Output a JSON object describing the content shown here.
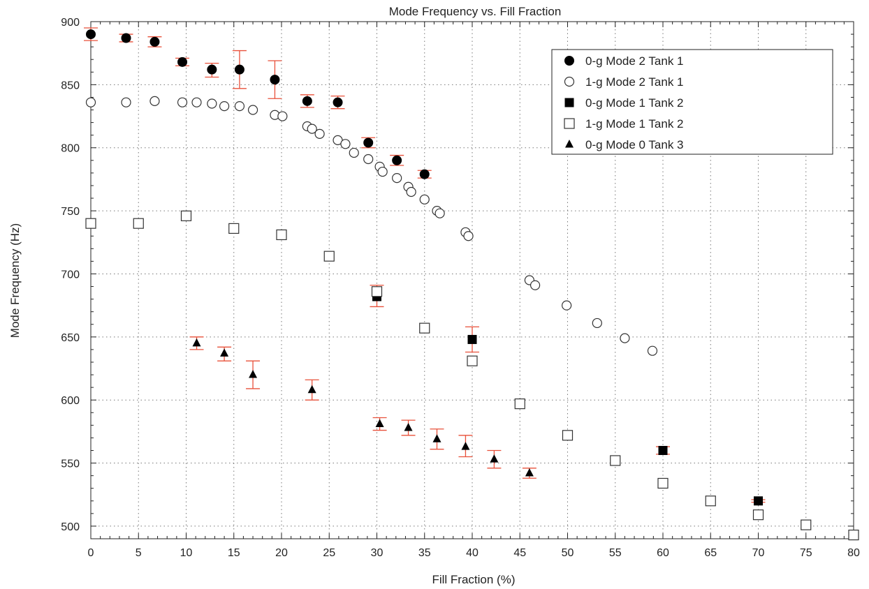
{
  "chart_data": {
    "type": "scatter",
    "title": "Mode Frequency vs. Fill Fraction",
    "xlabel": "Fill Fraction (%)",
    "ylabel": "Mode Frequency (Hz)",
    "xlim": [
      0,
      80
    ],
    "ylim": [
      490,
      900
    ],
    "x_ticks": [
      0,
      5,
      10,
      15,
      20,
      25,
      30,
      35,
      40,
      45,
      50,
      55,
      60,
      65,
      70,
      75,
      80
    ],
    "y_ticks": [
      500,
      550,
      600,
      650,
      700,
      750,
      800,
      850,
      900
    ],
    "grid": true,
    "legend_position": "top-right",
    "error_bar_color": "#e8503a",
    "series": [
      {
        "name": "0-g Mode 2 Tank 1",
        "marker": "filled-circle",
        "points": [
          {
            "x": 0,
            "y": 890,
            "lo": 885,
            "hi": 895
          },
          {
            "x": 3.7,
            "y": 887,
            "lo": 884,
            "hi": 890
          },
          {
            "x": 6.7,
            "y": 884,
            "lo": 880,
            "hi": 888
          },
          {
            "x": 9.6,
            "y": 868,
            "lo": 865,
            "hi": 871
          },
          {
            "x": 12.7,
            "y": 862,
            "lo": 856,
            "hi": 867
          },
          {
            "x": 15.6,
            "y": 862,
            "lo": 847,
            "hi": 877
          },
          {
            "x": 19.3,
            "y": 854,
            "lo": 839,
            "hi": 869
          },
          {
            "x": 22.7,
            "y": 837,
            "lo": 832,
            "hi": 842
          },
          {
            "x": 25.9,
            "y": 836,
            "lo": 831,
            "hi": 841
          },
          {
            "x": 29.1,
            "y": 804,
            "lo": 800,
            "hi": 808
          },
          {
            "x": 32.1,
            "y": 790,
            "lo": 786,
            "hi": 794
          },
          {
            "x": 35.0,
            "y": 779,
            "lo": 776,
            "hi": 782
          }
        ]
      },
      {
        "name": "1-g Mode 2 Tank 1",
        "marker": "open-circle",
        "points": [
          {
            "x": 0,
            "y": 836
          },
          {
            "x": 3.7,
            "y": 836
          },
          {
            "x": 6.7,
            "y": 837
          },
          {
            "x": 9.6,
            "y": 836
          },
          {
            "x": 11.1,
            "y": 836
          },
          {
            "x": 12.7,
            "y": 835
          },
          {
            "x": 14.0,
            "y": 833
          },
          {
            "x": 15.6,
            "y": 833
          },
          {
            "x": 17.0,
            "y": 830
          },
          {
            "x": 19.3,
            "y": 826
          },
          {
            "x": 20.1,
            "y": 825
          },
          {
            "x": 22.7,
            "y": 817
          },
          {
            "x": 23.2,
            "y": 815
          },
          {
            "x": 24.0,
            "y": 811
          },
          {
            "x": 25.9,
            "y": 806
          },
          {
            "x": 26.7,
            "y": 803
          },
          {
            "x": 27.6,
            "y": 796
          },
          {
            "x": 29.1,
            "y": 791
          },
          {
            "x": 30.3,
            "y": 785
          },
          {
            "x": 30.6,
            "y": 781
          },
          {
            "x": 32.1,
            "y": 776
          },
          {
            "x": 33.3,
            "y": 769
          },
          {
            "x": 33.6,
            "y": 765
          },
          {
            "x": 35.0,
            "y": 759
          },
          {
            "x": 36.3,
            "y": 750
          },
          {
            "x": 36.6,
            "y": 748
          },
          {
            "x": 39.3,
            "y": 733
          },
          {
            "x": 39.6,
            "y": 730
          },
          {
            "x": 46.0,
            "y": 695
          },
          {
            "x": 46.6,
            "y": 691
          },
          {
            "x": 49.9,
            "y": 675
          },
          {
            "x": 53.1,
            "y": 661
          },
          {
            "x": 56.0,
            "y": 649
          },
          {
            "x": 58.9,
            "y": 639
          }
        ]
      },
      {
        "name": "0-g Mode 1 Tank 2",
        "marker": "filled-square",
        "points": [
          {
            "x": 30,
            "y": 682,
            "lo": 674,
            "hi": 691
          },
          {
            "x": 40,
            "y": 648,
            "lo": 638,
            "hi": 658
          },
          {
            "x": 60,
            "y": 560,
            "lo": 557,
            "hi": 563
          },
          {
            "x": 70,
            "y": 520,
            "lo": 519,
            "hi": 521
          }
        ]
      },
      {
        "name": "1-g Mode 1 Tank 2",
        "marker": "open-square",
        "points": [
          {
            "x": 0,
            "y": 740
          },
          {
            "x": 5,
            "y": 740
          },
          {
            "x": 10,
            "y": 746
          },
          {
            "x": 15,
            "y": 736
          },
          {
            "x": 20,
            "y": 731
          },
          {
            "x": 25,
            "y": 714
          },
          {
            "x": 30,
            "y": 686
          },
          {
            "x": 35,
            "y": 657
          },
          {
            "x": 40,
            "y": 631
          },
          {
            "x": 45,
            "y": 597
          },
          {
            "x": 50,
            "y": 572
          },
          {
            "x": 55,
            "y": 552
          },
          {
            "x": 60,
            "y": 534
          },
          {
            "x": 65,
            "y": 520
          },
          {
            "x": 70,
            "y": 509
          },
          {
            "x": 75,
            "y": 501
          },
          {
            "x": 80,
            "y": 493
          }
        ]
      },
      {
        "name": "0-g Mode 0 Tank 3",
        "marker": "filled-triangle",
        "points": [
          {
            "x": 11.1,
            "y": 645,
            "lo": 640,
            "hi": 650
          },
          {
            "x": 14.0,
            "y": 637,
            "lo": 631,
            "hi": 642
          },
          {
            "x": 17.0,
            "y": 620,
            "lo": 609,
            "hi": 631
          },
          {
            "x": 23.2,
            "y": 608,
            "lo": 600,
            "hi": 616
          },
          {
            "x": 30.3,
            "y": 581,
            "lo": 576,
            "hi": 586
          },
          {
            "x": 33.3,
            "y": 578,
            "lo": 572,
            "hi": 584
          },
          {
            "x": 36.3,
            "y": 569,
            "lo": 561,
            "hi": 577
          },
          {
            "x": 39.3,
            "y": 563,
            "lo": 555,
            "hi": 572
          },
          {
            "x": 42.3,
            "y": 553,
            "lo": 546,
            "hi": 560
          },
          {
            "x": 46.0,
            "y": 542,
            "lo": 538,
            "hi": 546
          }
        ]
      }
    ]
  }
}
